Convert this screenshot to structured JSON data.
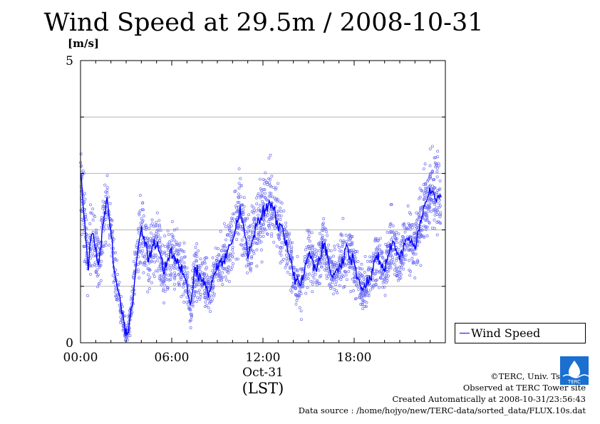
{
  "title": "Wind Speed at 29.5m / 2008-10-31",
  "chart_data": {
    "type": "scatter",
    "title": "Wind Speed at 29.5m / 2008-10-31",
    "ylabel": "[m/s]",
    "ylim": [
      0,
      5
    ],
    "y_ticks": [
      "0",
      "5"
    ],
    "xlim": [
      "00:00",
      "24:00"
    ],
    "x_ticks": [
      "00:00",
      "06:00",
      "12:00",
      "18:00"
    ],
    "x_date_label": "Oct-31",
    "x_tz_label": "(LST)",
    "grid": "horizontal",
    "legend": {
      "position": "bottom-right",
      "label": "Wind Speed"
    },
    "series": [
      {
        "name": "Wind Speed",
        "style": "line-with-scatter",
        "line_color": "#0000ff",
        "point_color": "#6f6ff2",
        "hours": [
          0,
          0.25,
          0.5,
          0.75,
          1.0,
          1.25,
          1.5,
          1.75,
          2.0,
          2.25,
          2.5,
          2.75,
          3.0,
          3.25,
          3.5,
          3.75,
          4.0,
          4.5,
          5.0,
          5.5,
          6.0,
          6.5,
          7.0,
          7.25,
          7.5,
          8.0,
          8.5,
          9.0,
          9.5,
          10.0,
          10.5,
          11.0,
          11.5,
          12.0,
          12.5,
          13.0,
          13.5,
          14.0,
          14.5,
          15.0,
          15.5,
          16.0,
          16.5,
          17.0,
          17.5,
          18.0,
          18.5,
          19.0,
          19.5,
          20.0,
          20.5,
          21.0,
          21.5,
          22.0,
          22.5,
          23.0,
          23.5
        ],
        "values": [
          3.0,
          2.2,
          1.4,
          2.0,
          1.6,
          1.4,
          2.2,
          2.5,
          2.0,
          1.2,
          0.9,
          0.5,
          0.1,
          0.4,
          1.0,
          1.6,
          2.0,
          1.5,
          1.8,
          1.3,
          1.6,
          1.4,
          1.0,
          0.6,
          1.3,
          1.1,
          0.9,
          1.4,
          1.5,
          1.8,
          2.4,
          1.6,
          2.0,
          2.3,
          2.5,
          2.1,
          1.8,
          1.2,
          1.0,
          1.6,
          1.3,
          1.8,
          1.2,
          1.3,
          1.7,
          1.4,
          1.0,
          1.1,
          1.5,
          1.3,
          1.8,
          1.5,
          1.9,
          1.7,
          2.3,
          2.7,
          2.6
        ]
      }
    ]
  },
  "credits": [
    "©TERC, Univ. Tsukuba",
    "Observed at TERC Tower site",
    "Created Automatically at 2008-10-31/23:56:43",
    "Data source : /home/hojyo/new/TERC-data/sorted_data/FLUX.10s.dat"
  ],
  "logo_text": "TERC"
}
